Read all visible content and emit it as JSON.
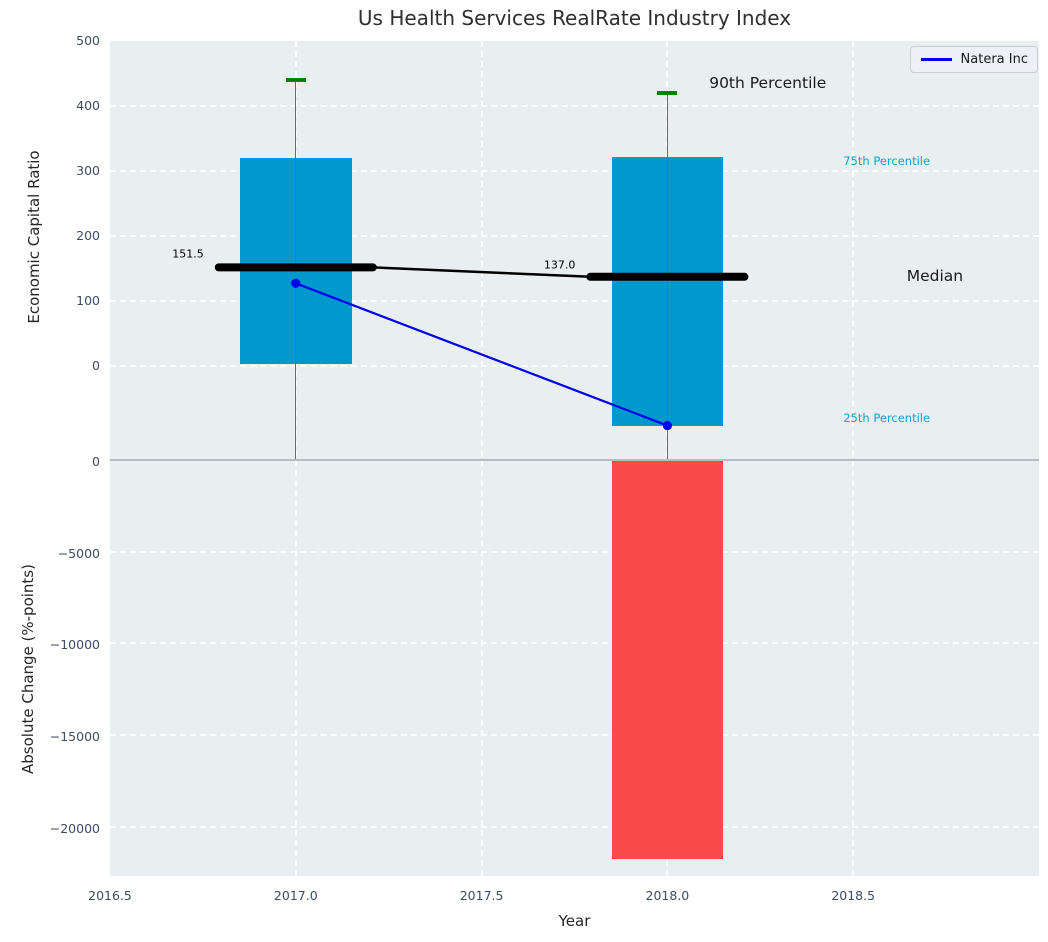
{
  "chart_data": {
    "type": "combo",
    "title": "Us Health Services RealRate Industry Index",
    "xlabel": "Year",
    "xlim": [
      2016.5,
      2019.0
    ],
    "xticks": [
      {
        "v": 2016.5,
        "label": "2016.5"
      },
      {
        "v": 2017.0,
        "label": "2017.0"
      },
      {
        "v": 2017.5,
        "label": "2017.5"
      },
      {
        "v": 2018.0,
        "label": "2018.0"
      },
      {
        "v": 2018.5,
        "label": "2018.5"
      }
    ],
    "grid": true,
    "legend_position": "upper right",
    "series_label": "Natera Inc",
    "panels": [
      {
        "name": "economic-capital-ratio",
        "type": "boxplot+line",
        "ylabel": "Economic Capital Ratio",
        "ylim": [
          -145,
          500
        ],
        "yticks": [
          {
            "v": 500,
            "label": "500"
          },
          {
            "v": 400,
            "label": "400"
          },
          {
            "v": 300,
            "label": "300"
          },
          {
            "v": 200,
            "label": "200"
          },
          {
            "v": 100,
            "label": "100"
          },
          {
            "v": 0,
            "label": "0"
          }
        ],
        "boxplots": [
          {
            "x": 2017,
            "q1": 3,
            "median": 151.5,
            "q3": 320,
            "p90": 440,
            "median_label": "151.5",
            "whisker_low_clipped": true
          },
          {
            "x": 2018,
            "q1": -92,
            "median": 137.0,
            "q3": 322,
            "p90": 420,
            "median_label": "137.0",
            "whisker_low_clipped": true
          }
        ],
        "series": [
          {
            "name": "Natera Inc",
            "x": [
              2017,
              2018
            ],
            "y": [
              127,
              -92
            ]
          }
        ],
        "annotations": [
          {
            "text": "90th Percentile",
            "x": 2018.27,
            "y": 435,
            "size": "large",
            "color": "#1a1a1a"
          },
          {
            "text": "75th Percentile",
            "x": 2018.59,
            "y": 315,
            "size": "small",
            "color": "#18a0cb"
          },
          {
            "text": "Median",
            "x": 2018.72,
            "y": 138,
            "size": "large",
            "color": "#1a1a1a"
          },
          {
            "text": "25th Percentile",
            "x": 2018.59,
            "y": -80,
            "size": "small",
            "color": "#18a0cb"
          },
          {
            "text": "151.5",
            "x": 2016.71,
            "y": 172,
            "size": "tiny",
            "color": "#000000"
          },
          {
            "text": "137.0",
            "x": 2017.71,
            "y": 155,
            "size": "tiny",
            "color": "#000000"
          }
        ]
      },
      {
        "name": "absolute-change",
        "type": "bar",
        "ylabel": "Absolute Change (%-points)",
        "ylim": [
          -22700,
          0
        ],
        "yticks": [
          {
            "v": 0,
            "label": "0"
          },
          {
            "v": -5000,
            "label": "−5000"
          },
          {
            "v": -10000,
            "label": "−10000"
          },
          {
            "v": -15000,
            "label": "−15000"
          },
          {
            "v": -20000,
            "label": "−20000"
          }
        ],
        "bars": [
          {
            "x": 2018,
            "value": -21700
          }
        ]
      }
    ],
    "colors": {
      "box_fill": "#0099cd",
      "bar_negative": "#fa3c3c",
      "whisker": "#6a6a6a",
      "percentile_cap": "#008000",
      "median_line": "#000000",
      "series_line": "#0000ee",
      "plot_background": "#e9eef0",
      "tick_text": "#3d4c63",
      "percentile_text": "#18a0cb"
    }
  }
}
